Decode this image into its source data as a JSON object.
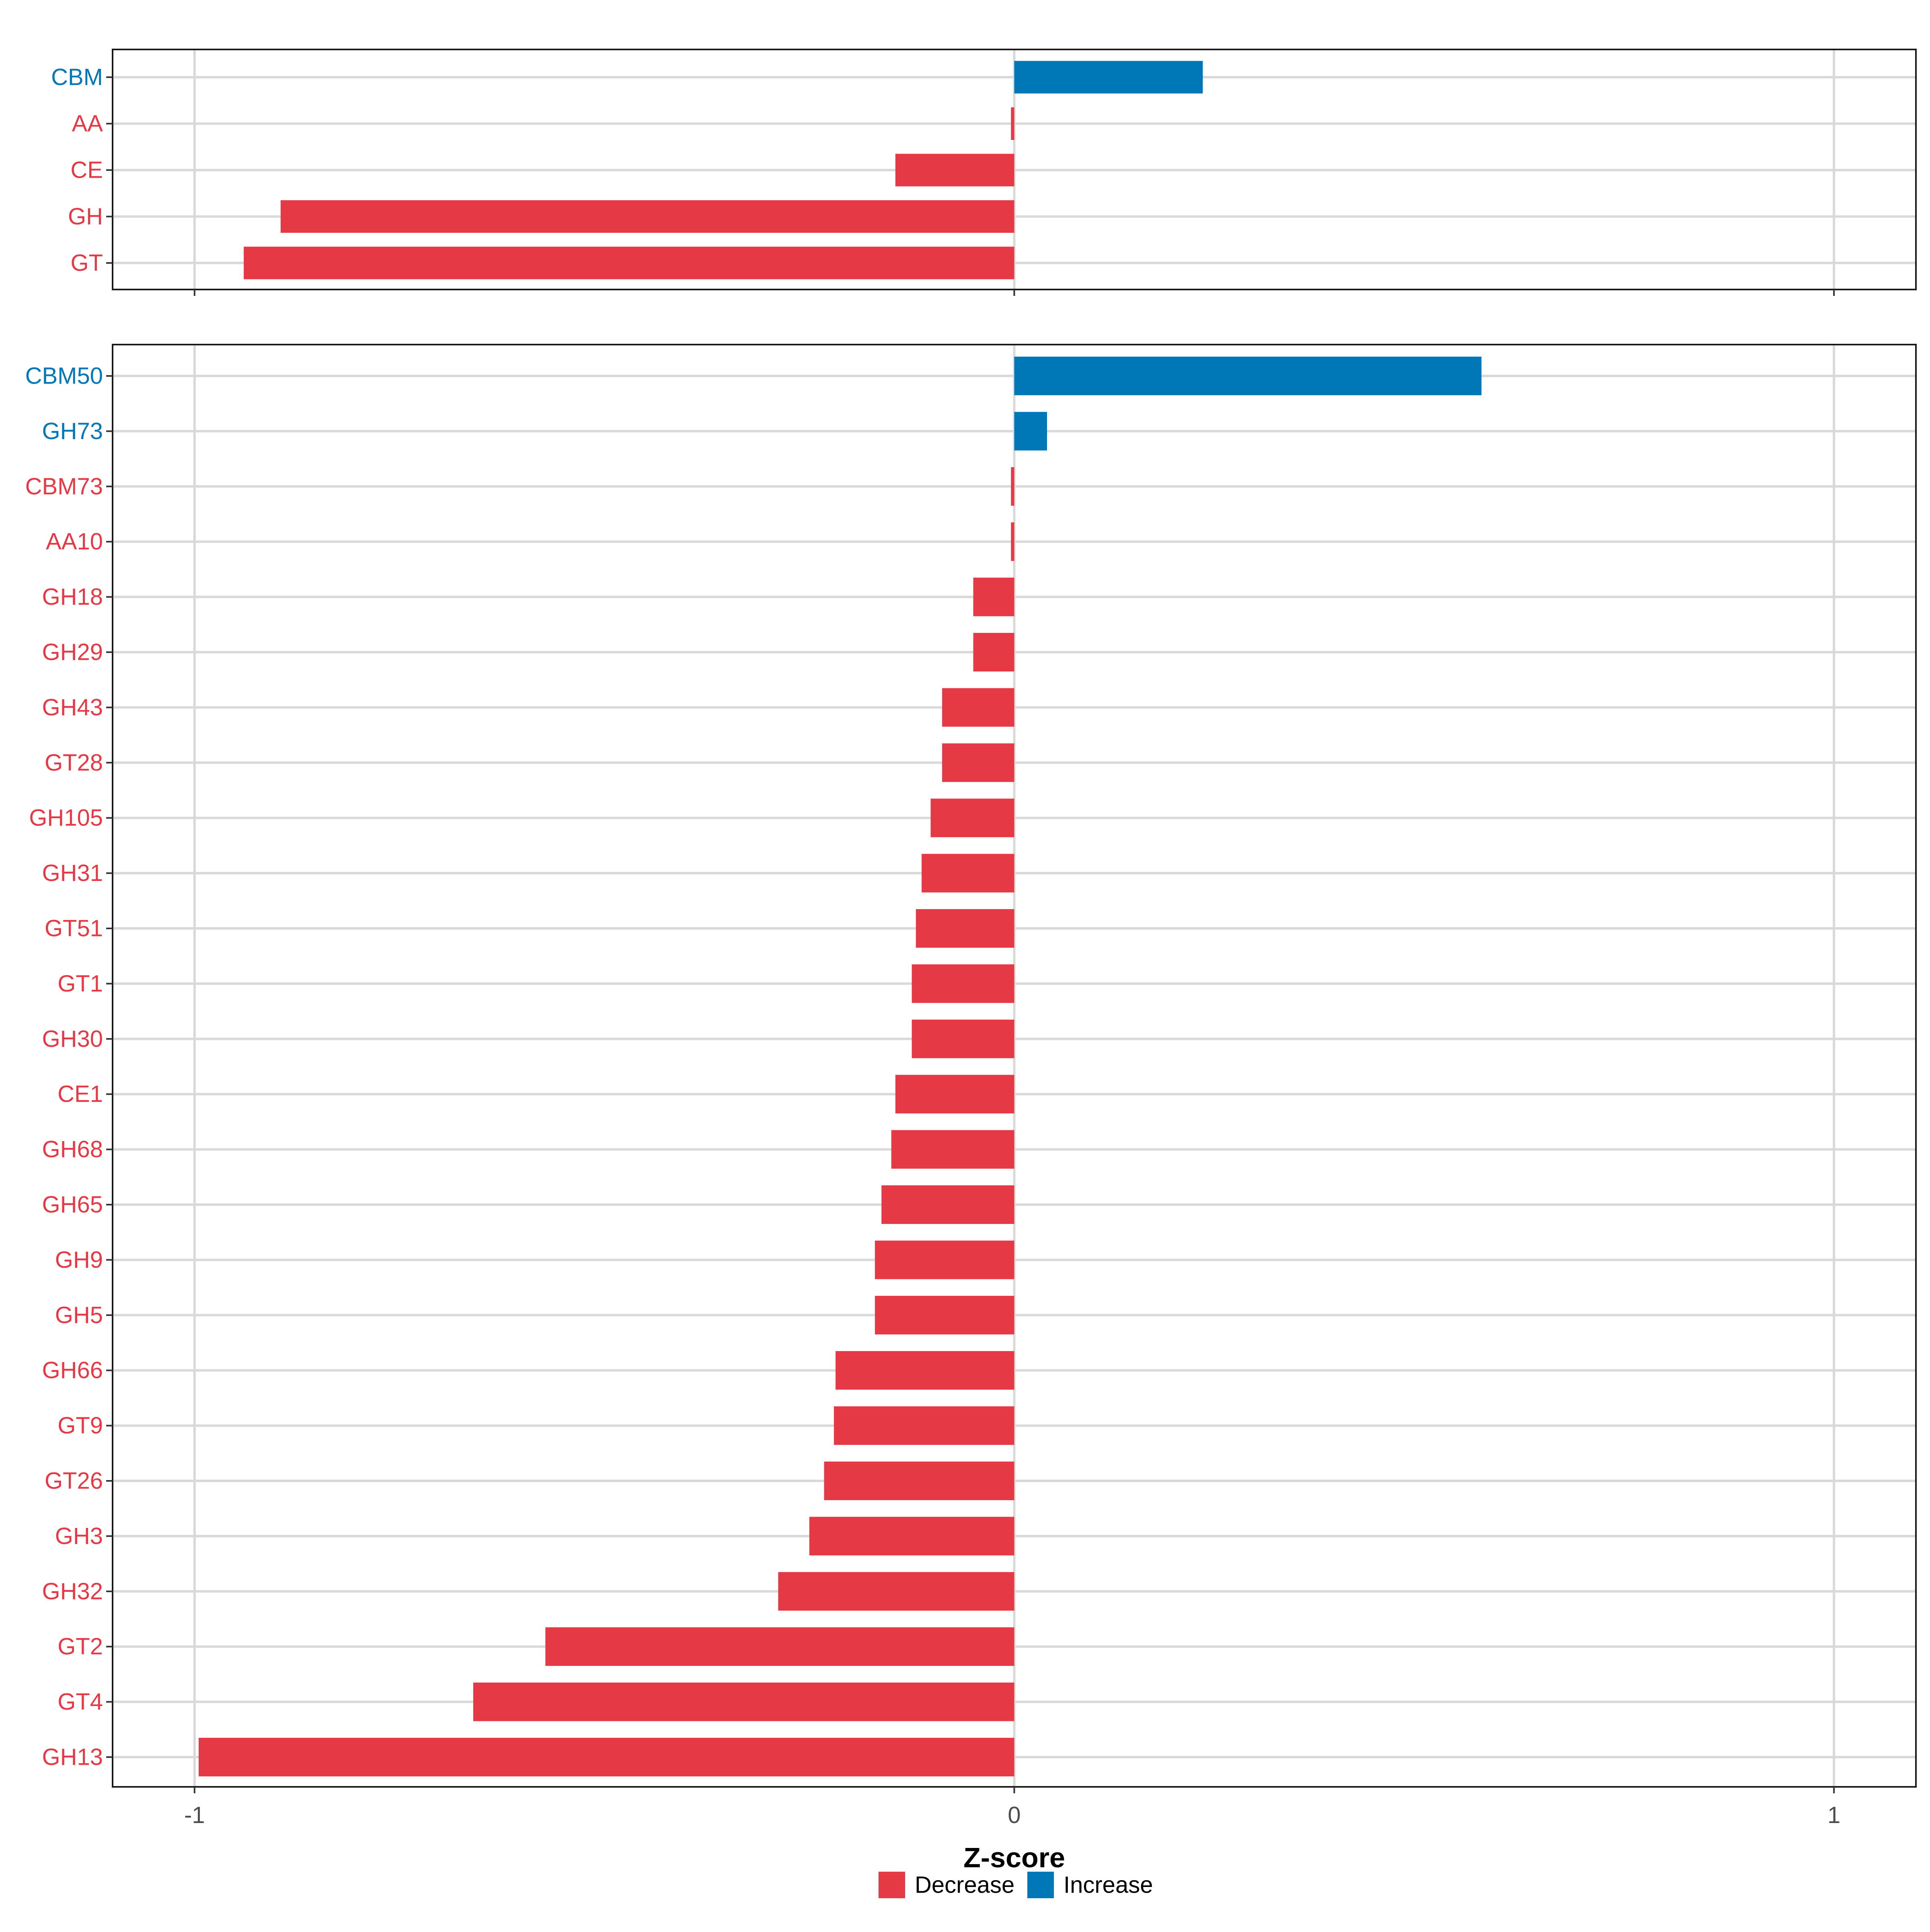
{
  "colors": {
    "decrease": "#E63946",
    "increase": "#0077B6",
    "grid": "#D9D9D9",
    "axis_text": "#4D4D4D"
  },
  "chart_data": [
    {
      "type": "bar",
      "orientation": "horizontal",
      "panel": "top",
      "categories": [
        "CBM",
        "AA",
        "CE",
        "GH",
        "GT"
      ],
      "values": [
        0.23,
        -0.004,
        -0.145,
        -0.895,
        -0.94
      ],
      "directions": [
        "Increase",
        "Decrease",
        "Decrease",
        "Decrease",
        "Decrease"
      ],
      "xlim": [
        -1.1,
        1.1
      ],
      "xticks": [
        -1,
        0,
        1
      ],
      "show_tick_labels": false
    },
    {
      "type": "bar",
      "orientation": "horizontal",
      "panel": "bottom",
      "categories": [
        "CBM50",
        "GH73",
        "CBM73",
        "AA10",
        "GH18",
        "GH29",
        "GH43",
        "GT28",
        "GH105",
        "GH31",
        "GT51",
        "GT1",
        "GH30",
        "CE1",
        "GH68",
        "GH65",
        "GH9",
        "GH5",
        "GH66",
        "GT9",
        "GT26",
        "GH3",
        "GH32",
        "GT2",
        "GT4",
        "GH13"
      ],
      "values": [
        0.57,
        0.04,
        -0.004,
        -0.004,
        -0.05,
        -0.05,
        -0.088,
        -0.088,
        -0.102,
        -0.113,
        -0.12,
        -0.125,
        -0.125,
        -0.145,
        -0.15,
        -0.162,
        -0.17,
        -0.17,
        -0.218,
        -0.22,
        -0.232,
        -0.25,
        -0.288,
        -0.572,
        -0.66,
        -0.995
      ],
      "directions": [
        "Increase",
        "Increase",
        "Decrease",
        "Decrease",
        "Decrease",
        "Decrease",
        "Decrease",
        "Decrease",
        "Decrease",
        "Decrease",
        "Decrease",
        "Decrease",
        "Decrease",
        "Decrease",
        "Decrease",
        "Decrease",
        "Decrease",
        "Decrease",
        "Decrease",
        "Decrease",
        "Decrease",
        "Decrease",
        "Decrease",
        "Decrease",
        "Decrease",
        "Decrease"
      ],
      "xlim": [
        -1.1,
        1.1
      ],
      "xticks": [
        -1,
        0,
        1
      ],
      "xtick_labels": [
        "-1",
        "0",
        "1"
      ],
      "xlabel": "Z-score",
      "show_tick_labels": true
    }
  ],
  "legend": {
    "position": "bottom",
    "items": [
      {
        "label": "Decrease",
        "direction": "Decrease"
      },
      {
        "label": "Increase",
        "direction": "Increase"
      }
    ]
  }
}
